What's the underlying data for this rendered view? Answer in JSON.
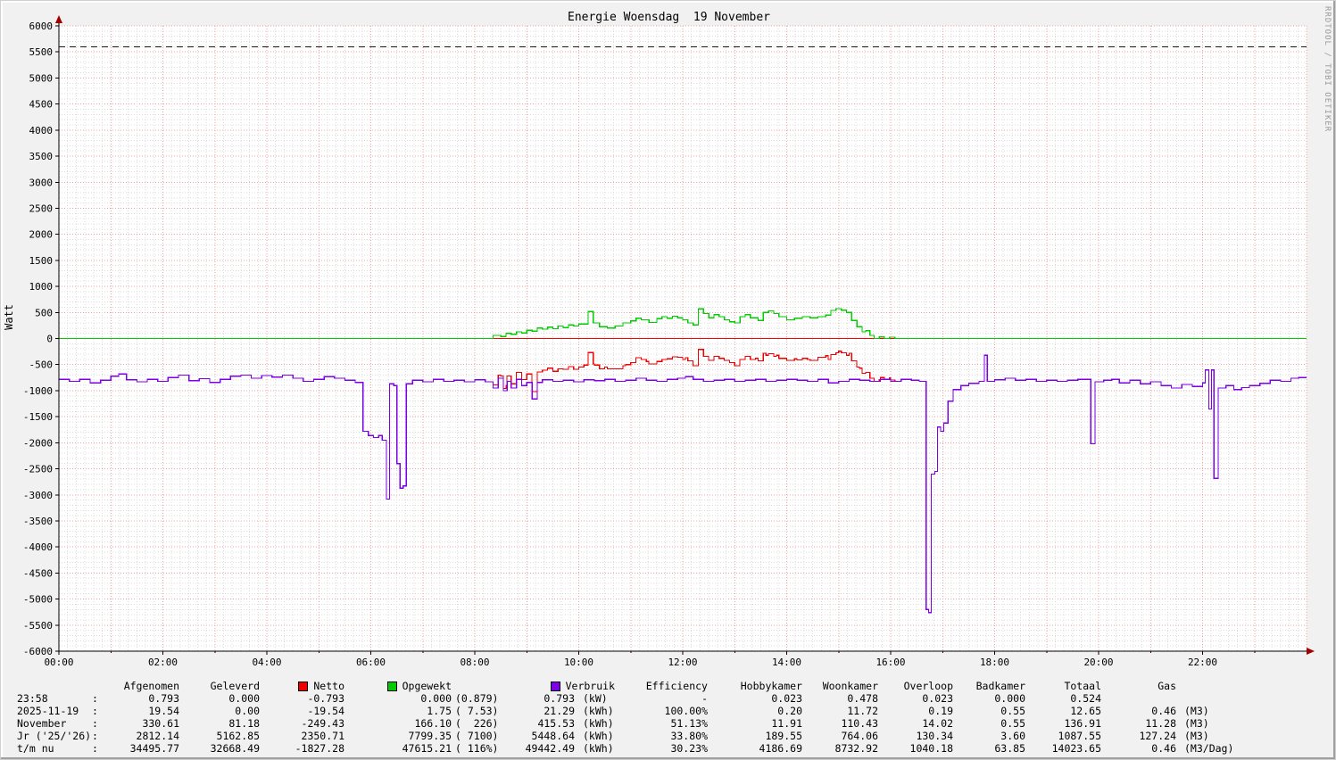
{
  "title": "Energie Woensdag  19 November",
  "watermark": "RRDTOOL / TOBI OETIKER",
  "y_axis": {
    "label": "Watt",
    "min": -6000,
    "max": 6000,
    "major_step": 500,
    "minor_step": 100
  },
  "x_axis": {
    "labels": [
      "00:00",
      "02:00",
      "04:00",
      "06:00",
      "08:00",
      "10:00",
      "12:00",
      "14:00",
      "16:00",
      "18:00",
      "20:00",
      "22:00"
    ],
    "hours": 24,
    "label_step_hours": 2
  },
  "colors": {
    "background": "#f1f1f1",
    "plot_background": "#ffffff",
    "grid_major": "#f0a0a0",
    "grid_minor": "#dcdcdc",
    "axis": "#000000",
    "arrow": "#a00000",
    "zero_rule": "#ff0000",
    "max_rule": "#1a1a1a",
    "netto": "#ee0000",
    "opgewekt": "#00cc00",
    "verbruik": "#7d00e6"
  },
  "chart_data": {
    "type": "line",
    "title": "Energie Woensdag  19 November",
    "ylabel": "Watt",
    "ylim": [
      -6000,
      6000
    ],
    "xlim_hours": [
      0,
      24
    ],
    "grid": "on",
    "legend_position": "bottom-table-header",
    "rules": [
      {
        "name": "zero-line",
        "value": 0,
        "color": "#ff0000",
        "dash": ""
      },
      {
        "name": "max-capacity-line",
        "value": 5600,
        "color": "#1a1a1a",
        "dash": "7,5"
      }
    ],
    "series": [
      {
        "name": "Netto",
        "color": "#ee0000",
        "derived": "Verbruik+Opgewekt",
        "points": []
      },
      {
        "name": "Opgewekt",
        "color": "#00cc00",
        "points": [
          [
            0,
            0
          ],
          [
            8.25,
            0
          ],
          [
            8.35,
            60
          ],
          [
            8.5,
            40
          ],
          [
            8.6,
            100
          ],
          [
            8.7,
            80
          ],
          [
            8.8,
            130
          ],
          [
            8.9,
            110
          ],
          [
            9.0,
            160
          ],
          [
            9.1,
            140
          ],
          [
            9.2,
            200
          ],
          [
            9.3,
            180
          ],
          [
            9.4,
            220
          ],
          [
            9.5,
            190
          ],
          [
            9.6,
            240
          ],
          [
            9.7,
            210
          ],
          [
            9.8,
            260
          ],
          [
            9.9,
            240
          ],
          [
            10.0,
            280
          ],
          [
            10.18,
            520
          ],
          [
            10.28,
            300
          ],
          [
            10.4,
            230
          ],
          [
            10.55,
            200
          ],
          [
            10.7,
            240
          ],
          [
            10.85,
            300
          ],
          [
            11.0,
            340
          ],
          [
            11.1,
            390
          ],
          [
            11.2,
            360
          ],
          [
            11.35,
            310
          ],
          [
            11.5,
            380
          ],
          [
            11.6,
            420
          ],
          [
            11.7,
            390
          ],
          [
            11.8,
            430
          ],
          [
            11.9,
            400
          ],
          [
            12.0,
            360
          ],
          [
            12.1,
            300
          ],
          [
            12.2,
            260
          ],
          [
            12.3,
            570
          ],
          [
            12.4,
            480
          ],
          [
            12.5,
            400
          ],
          [
            12.6,
            460
          ],
          [
            12.7,
            420
          ],
          [
            12.8,
            360
          ],
          [
            12.9,
            320
          ],
          [
            13.0,
            300
          ],
          [
            13.1,
            420
          ],
          [
            13.2,
            460
          ],
          [
            13.3,
            400
          ],
          [
            13.45,
            350
          ],
          [
            13.55,
            500
          ],
          [
            13.65,
            530
          ],
          [
            13.75,
            480
          ],
          [
            13.85,
            420
          ],
          [
            14.0,
            360
          ],
          [
            14.15,
            390
          ],
          [
            14.3,
            420
          ],
          [
            14.45,
            400
          ],
          [
            14.6,
            420
          ],
          [
            14.75,
            450
          ],
          [
            14.85,
            540
          ],
          [
            14.95,
            575
          ],
          [
            15.05,
            545
          ],
          [
            15.15,
            500
          ],
          [
            15.25,
            350
          ],
          [
            15.35,
            230
          ],
          [
            15.45,
            130
          ],
          [
            15.52,
            150
          ],
          [
            15.6,
            60
          ],
          [
            15.68,
            0
          ],
          [
            15.78,
            30
          ],
          [
            15.88,
            0
          ],
          [
            15.98,
            25
          ],
          [
            16.08,
            0
          ],
          [
            24,
            0
          ]
        ]
      },
      {
        "name": "Verbruik",
        "color": "#7d00e6",
        "points": [
          [
            0,
            -780
          ],
          [
            0.2,
            -820
          ],
          [
            0.4,
            -780
          ],
          [
            0.6,
            -850
          ],
          [
            0.8,
            -800
          ],
          [
            1.0,
            -720
          ],
          [
            1.15,
            -680
          ],
          [
            1.3,
            -790
          ],
          [
            1.5,
            -830
          ],
          [
            1.7,
            -780
          ],
          [
            1.9,
            -820
          ],
          [
            2.1,
            -750
          ],
          [
            2.3,
            -700
          ],
          [
            2.5,
            -810
          ],
          [
            2.7,
            -770
          ],
          [
            2.9,
            -840
          ],
          [
            3.1,
            -780
          ],
          [
            3.3,
            -720
          ],
          [
            3.5,
            -700
          ],
          [
            3.7,
            -760
          ],
          [
            3.9,
            -710
          ],
          [
            4.1,
            -740
          ],
          [
            4.3,
            -700
          ],
          [
            4.5,
            -760
          ],
          [
            4.7,
            -820
          ],
          [
            4.9,
            -780
          ],
          [
            5.1,
            -730
          ],
          [
            5.3,
            -760
          ],
          [
            5.5,
            -800
          ],
          [
            5.7,
            -840
          ],
          [
            5.85,
            -1780
          ],
          [
            5.95,
            -1860
          ],
          [
            6.05,
            -1900
          ],
          [
            6.15,
            -1860
          ],
          [
            6.22,
            -1950
          ],
          [
            6.3,
            -3080
          ],
          [
            6.36,
            -870
          ],
          [
            6.44,
            -900
          ],
          [
            6.5,
            -2400
          ],
          [
            6.56,
            -2870
          ],
          [
            6.62,
            -2830
          ],
          [
            6.68,
            -870
          ],
          [
            6.8,
            -800
          ],
          [
            7.0,
            -830
          ],
          [
            7.2,
            -780
          ],
          [
            7.4,
            -820
          ],
          [
            7.6,
            -800
          ],
          [
            7.8,
            -830
          ],
          [
            8.0,
            -790
          ],
          [
            8.2,
            -830
          ],
          [
            8.35,
            -950
          ],
          [
            8.45,
            -760
          ],
          [
            8.55,
            -1000
          ],
          [
            8.62,
            -820
          ],
          [
            8.7,
            -950
          ],
          [
            8.8,
            -780
          ],
          [
            8.9,
            -900
          ],
          [
            9.0,
            -840
          ],
          [
            9.1,
            -1160
          ],
          [
            9.2,
            -840
          ],
          [
            9.3,
            -790
          ],
          [
            9.5,
            -820
          ],
          [
            9.7,
            -800
          ],
          [
            9.9,
            -830
          ],
          [
            10.1,
            -790
          ],
          [
            10.3,
            -810
          ],
          [
            10.5,
            -780
          ],
          [
            10.7,
            -820
          ],
          [
            10.9,
            -800
          ],
          [
            11.1,
            -760
          ],
          [
            11.3,
            -800
          ],
          [
            11.5,
            -820
          ],
          [
            11.7,
            -780
          ],
          [
            11.9,
            -760
          ],
          [
            12.05,
            -730
          ],
          [
            12.2,
            -780
          ],
          [
            12.4,
            -820
          ],
          [
            12.6,
            -800
          ],
          [
            12.8,
            -780
          ],
          [
            13.0,
            -820
          ],
          [
            13.2,
            -800
          ],
          [
            13.4,
            -780
          ],
          [
            13.6,
            -820
          ],
          [
            13.8,
            -800
          ],
          [
            14.0,
            -780
          ],
          [
            14.2,
            -800
          ],
          [
            14.4,
            -820
          ],
          [
            14.6,
            -780
          ],
          [
            14.8,
            -850
          ],
          [
            15.0,
            -820
          ],
          [
            15.2,
            -780
          ],
          [
            15.4,
            -800
          ],
          [
            15.6,
            -820
          ],
          [
            15.8,
            -780
          ],
          [
            16.0,
            -820
          ],
          [
            16.2,
            -780
          ],
          [
            16.4,
            -800
          ],
          [
            16.55,
            -820
          ],
          [
            16.68,
            -5200
          ],
          [
            16.73,
            -5260
          ],
          [
            16.78,
            -2600
          ],
          [
            16.85,
            -2550
          ],
          [
            16.9,
            -1700
          ],
          [
            16.96,
            -1780
          ],
          [
            17.02,
            -1620
          ],
          [
            17.1,
            -1200
          ],
          [
            17.2,
            -980
          ],
          [
            17.35,
            -900
          ],
          [
            17.5,
            -860
          ],
          [
            17.7,
            -820
          ],
          [
            17.8,
            -320
          ],
          [
            17.86,
            -820
          ],
          [
            18.0,
            -790
          ],
          [
            18.2,
            -760
          ],
          [
            18.4,
            -800
          ],
          [
            18.6,
            -780
          ],
          [
            18.8,
            -820
          ],
          [
            19.0,
            -800
          ],
          [
            19.2,
            -820
          ],
          [
            19.4,
            -800
          ],
          [
            19.6,
            -780
          ],
          [
            19.85,
            -2020
          ],
          [
            19.93,
            -830
          ],
          [
            20.1,
            -800
          ],
          [
            20.25,
            -780
          ],
          [
            20.4,
            -850
          ],
          [
            20.6,
            -800
          ],
          [
            20.8,
            -870
          ],
          [
            21.0,
            -830
          ],
          [
            21.2,
            -900
          ],
          [
            21.4,
            -950
          ],
          [
            21.6,
            -880
          ],
          [
            21.8,
            -920
          ],
          [
            22.0,
            -850
          ],
          [
            22.05,
            -600
          ],
          [
            22.12,
            -1350
          ],
          [
            22.17,
            -600
          ],
          [
            22.22,
            -2680
          ],
          [
            22.3,
            -950
          ],
          [
            22.45,
            -900
          ],
          [
            22.6,
            -980
          ],
          [
            22.75,
            -940
          ],
          [
            22.9,
            -900
          ],
          [
            23.1,
            -860
          ],
          [
            23.3,
            -800
          ],
          [
            23.5,
            -820
          ],
          [
            23.7,
            -760
          ],
          [
            23.85,
            -750
          ],
          [
            24,
            -750
          ]
        ]
      }
    ]
  },
  "table": {
    "separator": ":",
    "headers": {
      "afgenomen": "Afgenomen",
      "geleverd": "Geleverd",
      "netto": "Netto",
      "opgewekt": "Opgewekt",
      "verbruik": "Verbruik",
      "efficiency": "Efficiency",
      "hobbykamer": "Hobbykamer",
      "woonkamer": "Woonkamer",
      "overloop": "Overloop",
      "badkamer": "Badkamer",
      "totaal": "Totaal",
      "gas": "Gas"
    },
    "rows": [
      {
        "label": "23:58",
        "afgenomen": "0.793",
        "geleverd": "0.000",
        "netto": "-0.793",
        "opgewekt": "0.000",
        "opgewekt_extra": "(0.879)",
        "verbruik": "0.793",
        "verbruik_unit": "(kW)",
        "efficiency": "-",
        "hobbykamer": "0.023",
        "woonkamer": "0.478",
        "overloop": "0.023",
        "badkamer": "0.000",
        "totaal": "0.524",
        "gas": "",
        "gas_unit": ""
      },
      {
        "label": "2025-11-19",
        "afgenomen": "19.54",
        "geleverd": "0.00",
        "netto": "-19.54",
        "opgewekt": "1.75",
        "opgewekt_extra": "( 7.53)",
        "verbruik": "21.29",
        "verbruik_unit": "(kWh)",
        "efficiency": "100.00%",
        "hobbykamer": "0.20",
        "woonkamer": "11.72",
        "overloop": "0.19",
        "badkamer": "0.55",
        "totaal": "12.65",
        "gas": "0.46",
        "gas_unit": "(M3)"
      },
      {
        "label": "November",
        "afgenomen": "330.61",
        "geleverd": "81.18",
        "netto": "-249.43",
        "opgewekt": "166.10",
        "opgewekt_extra": "(  226)",
        "verbruik": "415.53",
        "verbruik_unit": "(kWh)",
        "efficiency": "51.13%",
        "hobbykamer": "11.91",
        "woonkamer": "110.43",
        "overloop": "14.02",
        "badkamer": "0.55",
        "totaal": "136.91",
        "gas": "11.28",
        "gas_unit": "(M3)"
      },
      {
        "label": "Jr ('25/'26)",
        "afgenomen": "2812.14",
        "geleverd": "5162.85",
        "netto": "2350.71",
        "opgewekt": "7799.35",
        "opgewekt_extra": "( 7100)",
        "verbruik": "5448.64",
        "verbruik_unit": "(kWh)",
        "efficiency": "33.80%",
        "hobbykamer": "189.55",
        "woonkamer": "764.06",
        "overloop": "130.34",
        "badkamer": "3.60",
        "totaal": "1087.55",
        "gas": "127.24",
        "gas_unit": "(M3)"
      },
      {
        "label": "t/m nu",
        "afgenomen": "34495.77",
        "geleverd": "32668.49",
        "netto": "-1827.28",
        "opgewekt": "47615.21",
        "opgewekt_extra": "( 116%)",
        "verbruik": "49442.49",
        "verbruik_unit": "(kWh)",
        "efficiency": "30.23%",
        "hobbykamer": "4186.69",
        "woonkamer": "8732.92",
        "overloop": "1040.18",
        "badkamer": "63.85",
        "totaal": "14023.65",
        "gas": "0.46",
        "gas_unit": "(M3/Dag)"
      }
    ]
  }
}
